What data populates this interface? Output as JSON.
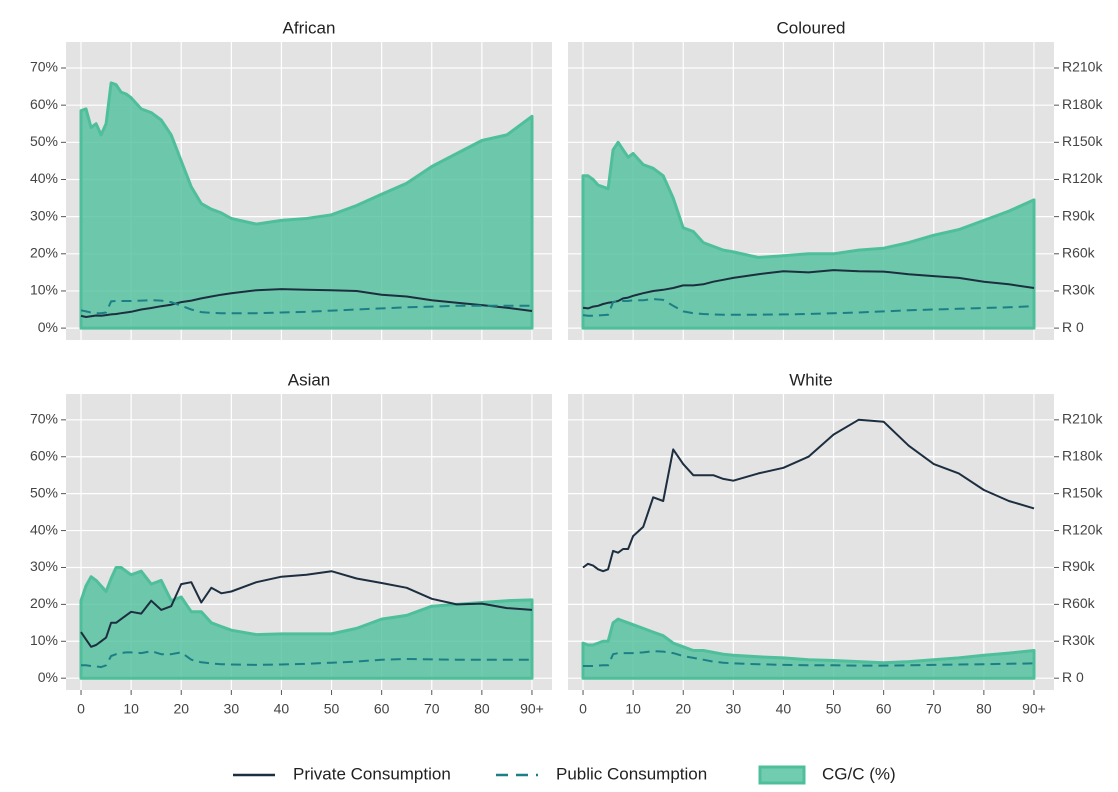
{
  "chart_data": [
    {
      "type": "line",
      "title": "African",
      "x": [
        0,
        1,
        2,
        3,
        4,
        5,
        6,
        7,
        8,
        9,
        10,
        12,
        14,
        16,
        18,
        20,
        22,
        24,
        26,
        28,
        30,
        35,
        40,
        45,
        50,
        55,
        60,
        65,
        70,
        75,
        80,
        85,
        90
      ],
      "xlim": [
        -3,
        94
      ],
      "ylim": [
        -3.2,
        77
      ],
      "y2lim": [
        -9600,
        231000
      ],
      "yticks": [
        {
          "value": 0,
          "label": "0%"
        },
        {
          "value": 10,
          "label": "10%"
        },
        {
          "value": 20,
          "label": "20%"
        },
        {
          "value": 30,
          "label": "30%"
        },
        {
          "value": 40,
          "label": "40%"
        },
        {
          "value": 50,
          "label": "50%"
        },
        {
          "value": 60,
          "label": "60%"
        },
        {
          "value": 70,
          "label": "70%"
        }
      ],
      "grid": true,
      "series": [
        {
          "name": "Private Consumption",
          "color": "#1c2e3f",
          "axis": "y2",
          "values": [
            9900,
            9000,
            9600,
            10200,
            9900,
            10500,
            11100,
            11400,
            12000,
            12600,
            13200,
            15000,
            16200,
            17700,
            18900,
            21000,
            22200,
            24000,
            25500,
            27000,
            28200,
            30600,
            31500,
            30900,
            30600,
            30000,
            27000,
            25500,
            22500,
            20400,
            18600,
            16500,
            13800
          ]
        },
        {
          "name": "Public Consumption",
          "color": "#1d7f86",
          "axis": "y2",
          "dash": true,
          "values": [
            14400,
            13500,
            12600,
            12000,
            12000,
            12600,
            21600,
            21900,
            21900,
            21900,
            21900,
            22200,
            22500,
            22200,
            21000,
            18000,
            15000,
            12900,
            12300,
            12000,
            12000,
            12000,
            12600,
            13200,
            14100,
            15000,
            15900,
            16800,
            17400,
            18000,
            18000,
            18000,
            18000
          ]
        },
        {
          "name": "CG/C (%)",
          "color": "#4fbf9b",
          "type": "area",
          "values": [
            58.5,
            59,
            54,
            55,
            52,
            55,
            66,
            65.5,
            63.5,
            63,
            62,
            59,
            58,
            56,
            52,
            45,
            38,
            33.5,
            32,
            31,
            29.5,
            28,
            29,
            29.5,
            30.5,
            33,
            36,
            39,
            43.5,
            47,
            50.5,
            52,
            57
          ]
        }
      ]
    },
    {
      "type": "line",
      "title": "Coloured",
      "x": [
        0,
        1,
        2,
        3,
        4,
        5,
        6,
        7,
        8,
        9,
        10,
        12,
        14,
        16,
        18,
        20,
        22,
        24,
        26,
        28,
        30,
        35,
        40,
        45,
        50,
        55,
        60,
        65,
        70,
        75,
        80,
        85,
        90
      ],
      "xlim": [
        -3,
        94
      ],
      "ylim": [
        -3.2,
        77
      ],
      "y2lim": [
        -9600,
        231000
      ],
      "y2ticks": [
        {
          "value": 0,
          "label": "R 0"
        },
        {
          "value": 30000,
          "label": "R30k"
        },
        {
          "value": 60000,
          "label": "R60k"
        },
        {
          "value": 90000,
          "label": "R90k"
        },
        {
          "value": 120000,
          "label": "R120k"
        },
        {
          "value": 150000,
          "label": "R150k"
        },
        {
          "value": 180000,
          "label": "R180k"
        },
        {
          "value": 210000,
          "label": "R210k"
        }
      ],
      "grid": true,
      "series": [
        {
          "color": "#1c2e3f",
          "axis": "y2",
          "values": [
            16500,
            15900,
            17400,
            18000,
            19500,
            20400,
            21000,
            21900,
            24000,
            24600,
            26100,
            28200,
            30000,
            30900,
            32400,
            34500,
            34500,
            35400,
            37500,
            39000,
            40500,
            43500,
            45900,
            45000,
            46800,
            45900,
            45600,
            43500,
            42000,
            40500,
            37500,
            35400,
            32400
          ]
        },
        {
          "color": "#1d7f86",
          "axis": "y2",
          "dash": true,
          "values": [
            10500,
            9900,
            9900,
            10200,
            10500,
            10800,
            21000,
            21900,
            21900,
            21900,
            22500,
            22500,
            23400,
            22800,
            18000,
            13500,
            12000,
            11400,
            11100,
            10800,
            10800,
            10800,
            11100,
            11400,
            12000,
            12600,
            13500,
            14400,
            15000,
            15600,
            16200,
            16800,
            17700
          ]
        },
        {
          "color": "#4fbf9b",
          "type": "area",
          "values": [
            41,
            41,
            40,
            38.5,
            38,
            37.5,
            48,
            50,
            48,
            46,
            47,
            44,
            43,
            41,
            35,
            27,
            26,
            23,
            22,
            21,
            20.5,
            19,
            19.5,
            20,
            20,
            21,
            21.5,
            23,
            25,
            26.5,
            29,
            31.5,
            34.5
          ]
        }
      ]
    },
    {
      "type": "line",
      "title": "Asian",
      "x": [
        0,
        1,
        2,
        3,
        4,
        5,
        6,
        7,
        8,
        9,
        10,
        12,
        14,
        16,
        18,
        20,
        22,
        24,
        26,
        28,
        30,
        35,
        40,
        45,
        50,
        55,
        60,
        65,
        70,
        75,
        80,
        85,
        90
      ],
      "xlim": [
        -3,
        94
      ],
      "ylim": [
        -3.2,
        77
      ],
      "y2lim": [
        -9600,
        231000
      ],
      "xticks": [
        0,
        10,
        20,
        30,
        40,
        50,
        60,
        70,
        80,
        {
          "value": 90,
          "label": "90+"
        }
      ],
      "yticks": [
        {
          "value": 0,
          "label": "0%"
        },
        {
          "value": 10,
          "label": "10%"
        },
        {
          "value": 20,
          "label": "20%"
        },
        {
          "value": 30,
          "label": "30%"
        },
        {
          "value": 40,
          "label": "40%"
        },
        {
          "value": 50,
          "label": "50%"
        },
        {
          "value": 60,
          "label": "60%"
        },
        {
          "value": 70,
          "label": "70%"
        }
      ],
      "grid": true,
      "series": [
        {
          "color": "#1c2e3f",
          "axis": "y2",
          "values": [
            37500,
            31500,
            25500,
            27000,
            30000,
            33000,
            45000,
            45000,
            48000,
            51000,
            54000,
            52500,
            63000,
            55500,
            58500,
            76500,
            78000,
            61500,
            73500,
            69000,
            70500,
            78000,
            82500,
            84000,
            87000,
            81000,
            77400,
            73500,
            64500,
            60000,
            60600,
            57000,
            55500
          ]
        },
        {
          "color": "#1d7f86",
          "axis": "y2",
          "dash": true,
          "values": [
            10500,
            10500,
            9900,
            9600,
            9000,
            10500,
            18000,
            19500,
            20400,
            21000,
            21000,
            20400,
            21900,
            19500,
            19500,
            21000,
            15000,
            12900,
            12000,
            11400,
            11100,
            10800,
            11100,
            11700,
            12600,
            13500,
            15000,
            15600,
            15300,
            15000,
            15000,
            15000,
            15000
          ]
        },
        {
          "color": "#4fbf9b",
          "type": "area",
          "values": [
            21,
            25,
            27.5,
            26.5,
            25,
            23.5,
            27,
            30,
            30,
            29,
            28,
            29,
            25.5,
            26.5,
            21,
            22,
            18,
            18,
            15,
            14,
            13,
            11.8,
            12,
            12,
            12,
            13.5,
            16,
            17,
            19.5,
            20,
            20.5,
            21,
            21.2
          ]
        }
      ]
    },
    {
      "type": "line",
      "title": "White",
      "x": [
        0,
        1,
        2,
        3,
        4,
        5,
        6,
        7,
        8,
        9,
        10,
        12,
        14,
        16,
        18,
        20,
        22,
        24,
        26,
        28,
        30,
        35,
        40,
        45,
        50,
        55,
        60,
        65,
        70,
        75,
        80,
        85,
        90
      ],
      "xlim": [
        -3,
        94
      ],
      "ylim": [
        -3.2,
        77
      ],
      "y2lim": [
        -9600,
        231000
      ],
      "xticks": [
        0,
        10,
        20,
        30,
        40,
        50,
        60,
        70,
        80,
        {
          "value": 90,
          "label": "90+"
        }
      ],
      "y2ticks": [
        {
          "value": 0,
          "label": "R 0"
        },
        {
          "value": 30000,
          "label": "R30k"
        },
        {
          "value": 60000,
          "label": "R60k"
        },
        {
          "value": 90000,
          "label": "R90k"
        },
        {
          "value": 120000,
          "label": "R120k"
        },
        {
          "value": 150000,
          "label": "R150k"
        },
        {
          "value": 180000,
          "label": "R180k"
        },
        {
          "value": 210000,
          "label": "R210k"
        }
      ],
      "grid": true,
      "series": [
        {
          "color": "#1c2e3f",
          "axis": "y2",
          "values": [
            90000,
            93000,
            91500,
            88500,
            87000,
            88500,
            103500,
            102000,
            105000,
            105000,
            115500,
            123000,
            147000,
            144000,
            186000,
            174000,
            165000,
            165000,
            165000,
            162000,
            160500,
            166500,
            171000,
            180000,
            198000,
            210000,
            208500,
            189000,
            174000,
            166500,
            153000,
            144000,
            138000
          ]
        },
        {
          "color": "#1d7f86",
          "axis": "y2",
          "dash": true,
          "values": [
            9900,
            9900,
            9900,
            10200,
            10500,
            10500,
            19500,
            20400,
            20400,
            20400,
            20400,
            21000,
            21900,
            21600,
            20400,
            18000,
            16500,
            15000,
            13500,
            12600,
            12000,
            11400,
            10800,
            10500,
            10500,
            10200,
            10200,
            10500,
            10800,
            11100,
            11400,
            11700,
            12000
          ]
        },
        {
          "color": "#4fbf9b",
          "type": "area",
          "values": [
            9.5,
            9,
            9,
            9.5,
            10,
            10,
            15,
            16,
            15.5,
            15,
            14.5,
            13.5,
            12.5,
            11.5,
            9.5,
            8.5,
            7.5,
            7.5,
            7,
            6.5,
            6.2,
            5.8,
            5.5,
            5,
            4.8,
            4.5,
            4.2,
            4.5,
            5,
            5.5,
            6.2,
            6.8,
            7.5
          ]
        }
      ]
    }
  ]
}
